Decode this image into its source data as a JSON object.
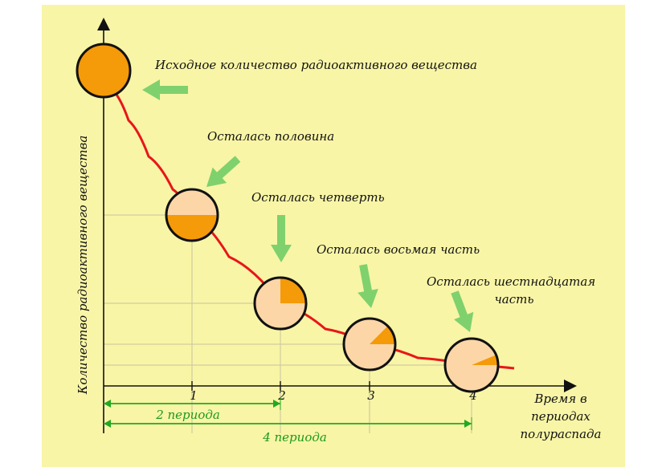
{
  "diagram": {
    "y_axis_label": "Количество радиоактивного вещества",
    "x_axis_label_lines": [
      "Время в",
      "периодах",
      "полураспада"
    ],
    "x_ticks": [
      "1",
      "2",
      "3",
      "4"
    ],
    "stages": [
      {
        "label_lines": [
          "Исходное количество радиоактивного вещества"
        ],
        "remaining_fraction": 1
      },
      {
        "label_lines": [
          "Осталась половина"
        ],
        "remaining_fraction": 0.5
      },
      {
        "label_lines": [
          "Осталась четверть"
        ],
        "remaining_fraction": 0.25
      },
      {
        "label_lines": [
          "Осталась восьмая часть"
        ],
        "remaining_fraction": 0.125
      },
      {
        "label_lines": [
          "Осталась шестнадцатая",
          "часть"
        ],
        "remaining_fraction": 0.0625
      }
    ],
    "spans": [
      "2 периода",
      "4 периода"
    ],
    "colors": {
      "background": "#f8f5a6",
      "curve": "#e8161a",
      "full": "#f59a08",
      "empty": "#fcd6a7",
      "arrow": "#7fd16d",
      "span": "#22a822",
      "grid": "#c9c4a0"
    }
  }
}
